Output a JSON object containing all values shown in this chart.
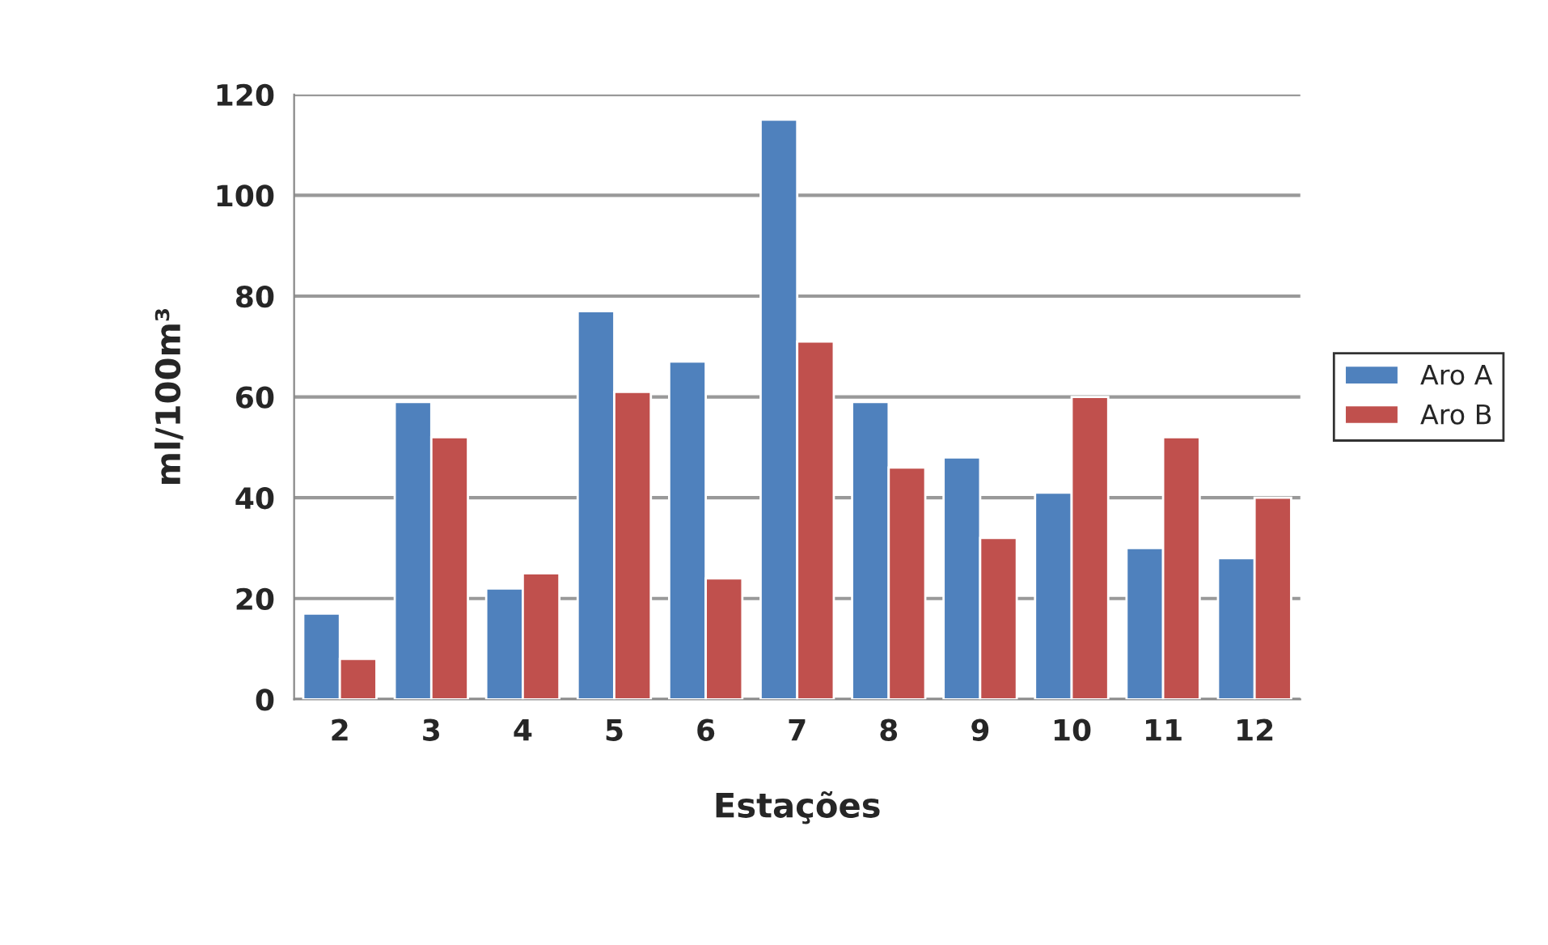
{
  "chart_data": {
    "type": "bar",
    "xlabel": "Estações",
    "ylabel": "ml/100m³",
    "categories": [
      "2",
      "3",
      "4",
      "5",
      "6",
      "7",
      "8",
      "9",
      "10",
      "11",
      "12"
    ],
    "series": [
      {
        "name": "Aro A",
        "color": "#4f81bd",
        "values": [
          17,
          59,
          22,
          77,
          67,
          115,
          59,
          48,
          41,
          30,
          28
        ]
      },
      {
        "name": "Aro B",
        "color": "#c0504d",
        "values": [
          8,
          52,
          25,
          61,
          24,
          71,
          46,
          32,
          60,
          52,
          40
        ]
      }
    ],
    "ylim": [
      0,
      120
    ],
    "yticks": [
      0,
      20,
      40,
      60,
      80,
      100,
      120
    ],
    "grid": "y",
    "legend": "right"
  }
}
